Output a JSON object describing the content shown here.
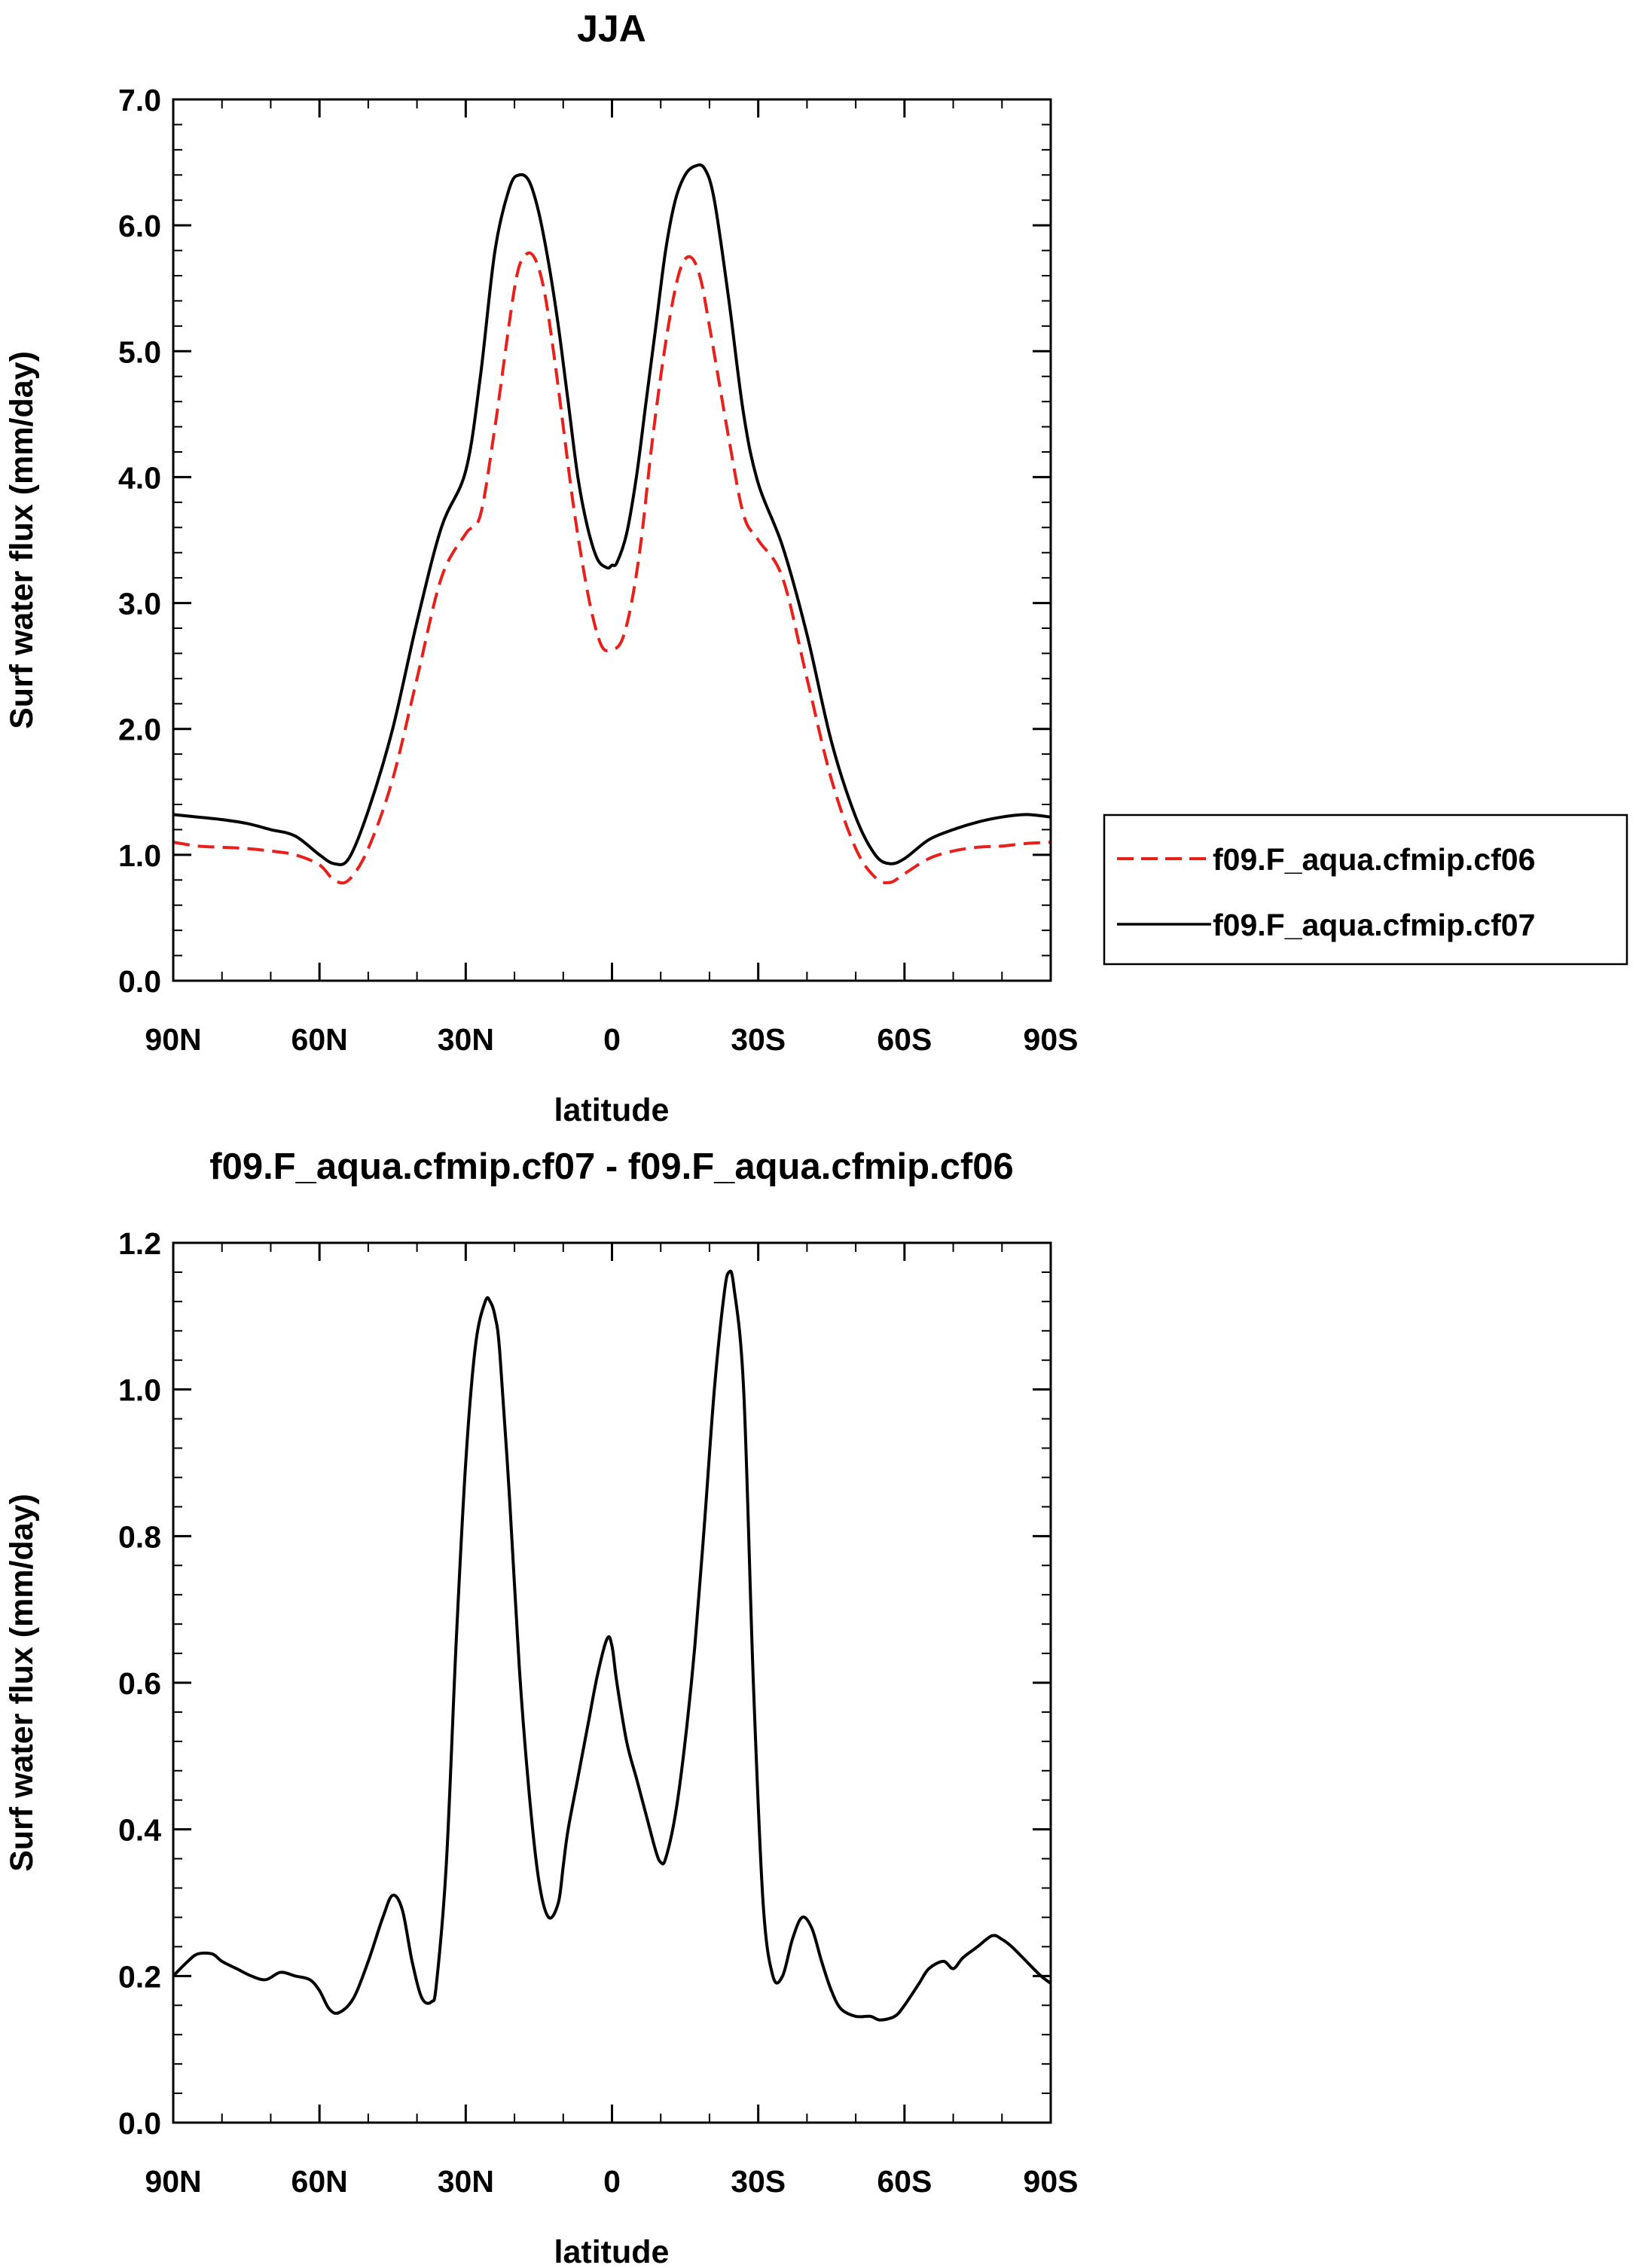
{
  "chart_data": [
    {
      "type": "line",
      "title": "JJA",
      "xlabel": "latitude",
      "ylabel": "Surf water flux (mm/day)",
      "xlim": [
        90,
        -90
      ],
      "ylim": [
        0.0,
        7.0
      ],
      "xticks": [
        90,
        60,
        30,
        0,
        -30,
        -60,
        -90
      ],
      "xtick_labels": [
        "90N",
        "60N",
        "30N",
        "0",
        "30S",
        "60S",
        "90S"
      ],
      "yticks": [
        0,
        1,
        2,
        3,
        4,
        5,
        6,
        7
      ],
      "ytick_labels": [
        "0.0",
        "1.0",
        "2.0",
        "3.0",
        "4.0",
        "5.0",
        "6.0",
        "7.0"
      ],
      "grid": false,
      "legend_position": "right",
      "series": [
        {
          "name": "f09.F_aqua.cfmip.cf06",
          "color": "#e8201c",
          "dash": "dashed",
          "x": [
            90,
            85,
            80,
            75,
            70,
            65,
            60,
            57,
            54,
            50,
            45,
            40,
            35,
            30,
            27,
            24,
            20,
            18,
            16,
            14,
            12,
            10,
            8,
            6,
            4,
            2,
            0,
            -2,
            -4,
            -6,
            -8,
            -10,
            -12,
            -14,
            -16,
            -18,
            -20,
            -24,
            -27,
            -30,
            -35,
            -40,
            -45,
            -50,
            -54,
            -57,
            -60,
            -65,
            -70,
            -75,
            -80,
            -85,
            -90
          ],
          "y": [
            1.1,
            1.07,
            1.06,
            1.05,
            1.03,
            1.0,
            0.92,
            0.8,
            0.8,
            1.05,
            1.6,
            2.4,
            3.2,
            3.55,
            3.7,
            4.4,
            5.5,
            5.75,
            5.75,
            5.5,
            5.0,
            4.4,
            3.8,
            3.3,
            2.9,
            2.65,
            2.63,
            2.7,
            3.0,
            3.5,
            4.2,
            4.8,
            5.3,
            5.65,
            5.75,
            5.6,
            5.2,
            4.3,
            3.7,
            3.5,
            3.2,
            2.4,
            1.6,
            1.05,
            0.82,
            0.78,
            0.85,
            0.97,
            1.03,
            1.06,
            1.07,
            1.09,
            1.1
          ]
        },
        {
          "name": "f09.F_aqua.cfmip.cf07",
          "color": "#000000",
          "dash": "solid",
          "x": [
            90,
            85,
            80,
            75,
            70,
            65,
            60,
            57,
            54,
            50,
            45,
            40,
            35,
            30,
            27,
            24,
            21,
            19,
            17,
            15,
            13,
            11,
            9,
            7,
            5,
            3,
            1,
            0,
            -1,
            -3,
            -5,
            -7,
            -9,
            -11,
            -13,
            -15,
            -17,
            -19,
            -21,
            -24,
            -27,
            -30,
            -35,
            -40,
            -45,
            -50,
            -54,
            -57,
            -60,
            -65,
            -70,
            -75,
            -80,
            -85,
            -90
          ],
          "y": [
            1.32,
            1.3,
            1.28,
            1.25,
            1.2,
            1.15,
            1.0,
            0.93,
            0.97,
            1.35,
            2.0,
            2.85,
            3.6,
            4.05,
            4.8,
            5.8,
            6.3,
            6.4,
            6.35,
            6.1,
            5.7,
            5.2,
            4.6,
            4.0,
            3.6,
            3.35,
            3.28,
            3.3,
            3.32,
            3.55,
            4.0,
            4.6,
            5.2,
            5.8,
            6.2,
            6.4,
            6.47,
            6.45,
            6.2,
            5.4,
            4.5,
            3.95,
            3.45,
            2.75,
            1.9,
            1.3,
            1.0,
            0.93,
            0.97,
            1.12,
            1.2,
            1.26,
            1.3,
            1.32,
            1.3
          ]
        }
      ]
    },
    {
      "type": "line",
      "title": "f09.F_aqua.cfmip.cf07 - f09.F_aqua.cfmip.cf06",
      "xlabel": "latitude",
      "ylabel": "Surf water flux (mm/day)",
      "xlim": [
        90,
        -90
      ],
      "ylim": [
        0.0,
        1.2
      ],
      "xticks": [
        90,
        60,
        30,
        0,
        -30,
        -60,
        -90
      ],
      "xtick_labels": [
        "90N",
        "60N",
        "30N",
        "0",
        "30S",
        "60S",
        "90S"
      ],
      "yticks": [
        0,
        0.2,
        0.4,
        0.6,
        0.8,
        1.0,
        1.2
      ],
      "ytick_labels": [
        "0.0",
        "0.2",
        "0.4",
        "0.6",
        "0.8",
        "1.0",
        "1.2"
      ],
      "grid": false,
      "series": [
        {
          "color": "#000000",
          "dash": "solid",
          "x": [
            90,
            87,
            85,
            82,
            80,
            77,
            74,
            71,
            68,
            65,
            62,
            60,
            58,
            56,
            53,
            50,
            47,
            45,
            43,
            41,
            39,
            37,
            36,
            34,
            32,
            30,
            28,
            26,
            25,
            24,
            23,
            21,
            19,
            17,
            15,
            13,
            11,
            10,
            9,
            7,
            5,
            3,
            1,
            0,
            -1,
            -3,
            -5,
            -7,
            -9,
            -10,
            -11,
            -13,
            -15,
            -17,
            -19,
            -21,
            -23,
            -24,
            -25,
            -27,
            -29,
            -31,
            -33,
            -35,
            -37,
            -39,
            -41,
            -43,
            -45,
            -47,
            -50,
            -53,
            -55,
            -58,
            -60,
            -63,
            -65,
            -68,
            -70,
            -72,
            -75,
            -78,
            -80,
            -82,
            -85,
            -88,
            -90
          ],
          "y": [
            0.2,
            0.22,
            0.23,
            0.23,
            0.22,
            0.21,
            0.2,
            0.195,
            0.205,
            0.2,
            0.195,
            0.18,
            0.155,
            0.15,
            0.17,
            0.22,
            0.28,
            0.31,
            0.29,
            0.22,
            0.17,
            0.165,
            0.19,
            0.35,
            0.65,
            0.9,
            1.06,
            1.12,
            1.12,
            1.1,
            1.05,
            0.85,
            0.62,
            0.45,
            0.33,
            0.28,
            0.3,
            0.35,
            0.4,
            0.47,
            0.54,
            0.61,
            0.66,
            0.65,
            0.6,
            0.52,
            0.47,
            0.42,
            0.37,
            0.355,
            0.36,
            0.42,
            0.52,
            0.65,
            0.82,
            1.0,
            1.13,
            1.16,
            1.14,
            1.0,
            0.6,
            0.3,
            0.2,
            0.2,
            0.25,
            0.28,
            0.265,
            0.22,
            0.18,
            0.155,
            0.145,
            0.145,
            0.14,
            0.145,
            0.16,
            0.19,
            0.21,
            0.22,
            0.21,
            0.225,
            0.24,
            0.255,
            0.25,
            0.24,
            0.22,
            0.2,
            0.19
          ]
        }
      ]
    }
  ]
}
